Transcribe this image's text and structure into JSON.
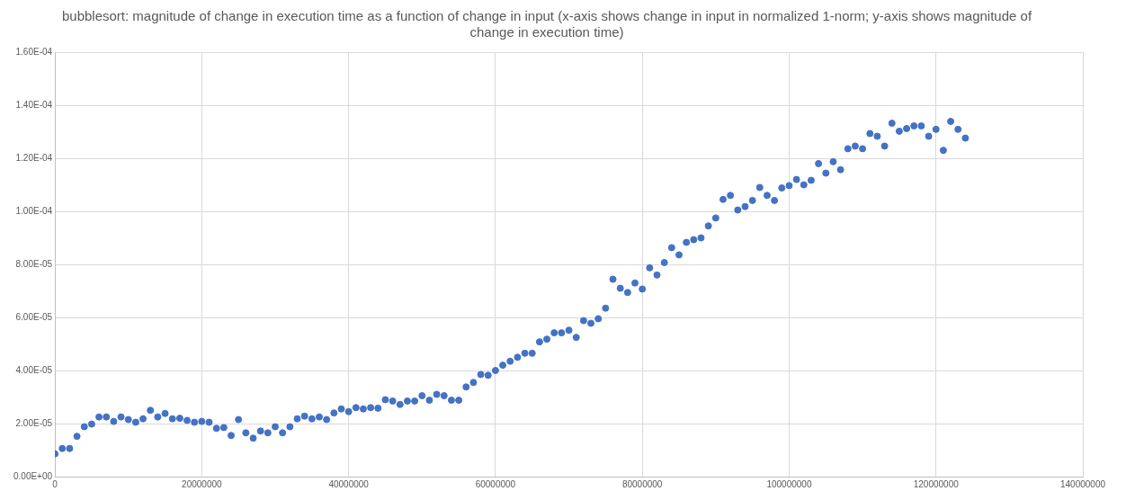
{
  "chart_data": {
    "type": "scatter",
    "title": "bubblesort: magnitude of change in execution time as a function of change in input (x-axis shows change in input in normalized 1-norm; y-axis shows magnitude of change in execution time)",
    "x": [
      0,
      1000000,
      2000000,
      3000000,
      4000000,
      5000000,
      6000000,
      7000000,
      8000000,
      9000000,
      10000000,
      11000000,
      12000000,
      13000000,
      14000000,
      15000000,
      16000000,
      17000000,
      18000000,
      19000000,
      20000000,
      21000000,
      22000000,
      23000000,
      24000000,
      25000000,
      26000000,
      27000000,
      28000000,
      29000000,
      30000000,
      31000000,
      32000000,
      33000000,
      34000000,
      35000000,
      36000000,
      37000000,
      38000000,
      39000000,
      40000000,
      41000000,
      42000000,
      43000000,
      44000000,
      45000000,
      46000000,
      47000000,
      48000000,
      49000000,
      50000000,
      51000000,
      52000000,
      53000000,
      54000000,
      55000000,
      56000000,
      57000000,
      58000000,
      59000000,
      60000000,
      61000000,
      62000000,
      63000000,
      64000000,
      65000000,
      66000000,
      67000000,
      68000000,
      69000000,
      70000000,
      71000000,
      72000000,
      73000000,
      74000000,
      75000000,
      76000000,
      77000000,
      78000000,
      79000000,
      80000000,
      81000000,
      82000000,
      83000000,
      84000000,
      85000000,
      86000000,
      87000000,
      88000000,
      89000000,
      90000000,
      91000000,
      92000000,
      93000000,
      94000000,
      95000000,
      96000000,
      97000000,
      98000000,
      99000000,
      100000000,
      101000000,
      102000000,
      103000000,
      104000000,
      105000000,
      106000000,
      107000000,
      108000000,
      109000000,
      110000000,
      111000000,
      112000000,
      113000000,
      114000000,
      115000000,
      116000000,
      117000000,
      118000000,
      119000000,
      120000000,
      121000000,
      122000000,
      123000000,
      124000000
    ],
    "series": [
      {
        "color": "#4472c4",
        "values": [
          8.6e-06,
          1.06e-05,
          1.06e-05,
          1.52e-05,
          1.88e-05,
          1.98e-05,
          2.25e-05,
          2.25e-05,
          2.08e-05,
          2.25e-05,
          2.15e-05,
          2.05e-05,
          2.18e-05,
          2.5e-05,
          2.25e-05,
          2.38e-05,
          2.18e-05,
          2.2e-05,
          2.12e-05,
          2.05e-05,
          2.08e-05,
          2.05e-05,
          1.82e-05,
          1.85e-05,
          1.55e-05,
          2.15e-05,
          1.65e-05,
          1.45e-05,
          1.72e-05,
          1.65e-05,
          1.88e-05,
          1.65e-05,
          1.88e-05,
          2.18e-05,
          2.28e-05,
          2.18e-05,
          2.25e-05,
          2.15e-05,
          2.4e-05,
          2.55e-05,
          2.45e-05,
          2.6e-05,
          2.55e-05,
          2.6e-05,
          2.58e-05,
          2.9e-05,
          2.85e-05,
          2.72e-05,
          2.85e-05,
          2.85e-05,
          3.05e-05,
          2.88e-05,
          3.1e-05,
          3.05e-05,
          2.88e-05,
          2.88e-05,
          3.38e-05,
          3.55e-05,
          3.85e-05,
          3.82e-05,
          4e-05,
          4.2e-05,
          4.35e-05,
          4.5e-05,
          4.65e-05,
          4.65e-05,
          5.08e-05,
          5.18e-05,
          5.42e-05,
          5.42e-05,
          5.52e-05,
          5.25e-05,
          5.88e-05,
          5.78e-05,
          5.95e-05,
          6.35e-05,
          7.44e-05,
          7.1e-05,
          6.94e-05,
          7.3e-05,
          7.07e-05,
          7.87e-05,
          7.6e-05,
          8.07e-05,
          8.63e-05,
          8.36e-05,
          8.83e-05,
          8.93e-05,
          9e-05,
          9.45e-05,
          9.75e-05,
          0.0001045,
          0.000106,
          0.0001005,
          0.0001018,
          0.0001041,
          0.000109,
          0.000106,
          0.0001041,
          0.0001088,
          0.0001097,
          0.000112,
          0.00011,
          0.0001117,
          0.000118,
          0.0001144,
          0.0001187,
          0.0001157,
          0.0001236,
          0.0001246,
          0.0001236,
          0.0001293,
          0.0001283,
          0.0001246,
          0.0001332,
          0.0001302,
          0.0001312,
          0.0001322,
          0.0001322,
          0.0001283,
          0.0001309,
          0.000123,
          0.0001339,
          0.0001309,
          0.0001276
        ]
      }
    ],
    "xlim": [
      0,
      140000000
    ],
    "xticks": [
      0,
      20000000,
      40000000,
      60000000,
      80000000,
      100000000,
      120000000,
      140000000
    ],
    "ylim": [
      0,
      0.00016
    ],
    "yticks": [
      {
        "value": 0,
        "label": "0.00E+00"
      },
      {
        "value": 2e-05,
        "label": "2.00E-05"
      },
      {
        "value": 4e-05,
        "label": "4.00E-05"
      },
      {
        "value": 6e-05,
        "label": "6.00E-05"
      },
      {
        "value": 8e-05,
        "label": "8.00E-05"
      },
      {
        "value": 0.0001,
        "label": "1.00E-04"
      },
      {
        "value": 0.00012,
        "label": "1.20E-04"
      },
      {
        "value": 0.00014,
        "label": "1.40E-04"
      },
      {
        "value": 0.00016,
        "label": "1.60E-04"
      }
    ],
    "grid": true,
    "legend": false,
    "marker": "circle"
  }
}
